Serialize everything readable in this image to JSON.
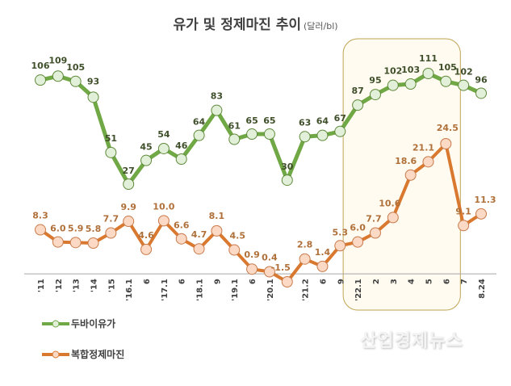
{
  "chart_data": {
    "type": "line",
    "title": "유가 및 정제마진 추이",
    "unit": "(달러/bl)",
    "categories": [
      "'11",
      "'12",
      "'13",
      "'14",
      "'15",
      "'16.1",
      "6",
      "'17.1",
      "6",
      "'18.1",
      "9",
      "'19.1",
      "6",
      "'20.1",
      "5",
      "'21.2",
      "6",
      "9",
      "'22.1",
      "2",
      "3",
      "4",
      "5",
      "6",
      "7",
      "8.24"
    ],
    "series": [
      {
        "name": "두바이유가",
        "color": "#70a845",
        "marker_fill": "#e2efd9",
        "values": [
          106,
          109,
          105,
          93,
          51,
          27,
          45,
          54,
          46,
          64,
          83,
          61,
          65,
          65,
          30,
          63,
          64,
          67,
          87,
          95,
          102,
          103,
          111,
          105,
          102,
          96
        ]
      },
      {
        "name": "복합정제마진",
        "color": "#d9782f",
        "marker_fill": "#fbd9c4",
        "values": [
          8.3,
          6.0,
          5.9,
          5.8,
          7.7,
          9.9,
          4.6,
          10.0,
          6.6,
          4.7,
          8.1,
          4.5,
          0.9,
          0.4,
          -1.5,
          2.8,
          1.4,
          5.3,
          6.0,
          7.7,
          10.6,
          18.6,
          21.1,
          24.5,
          9.1,
          11.3
        ]
      }
    ],
    "highlight": {
      "from": "'22.1",
      "to": "6"
    },
    "xlabel": "",
    "ylabel": "",
    "grid": false,
    "legend_position": "bottom-left"
  },
  "watermark": "산업경제뉴스"
}
